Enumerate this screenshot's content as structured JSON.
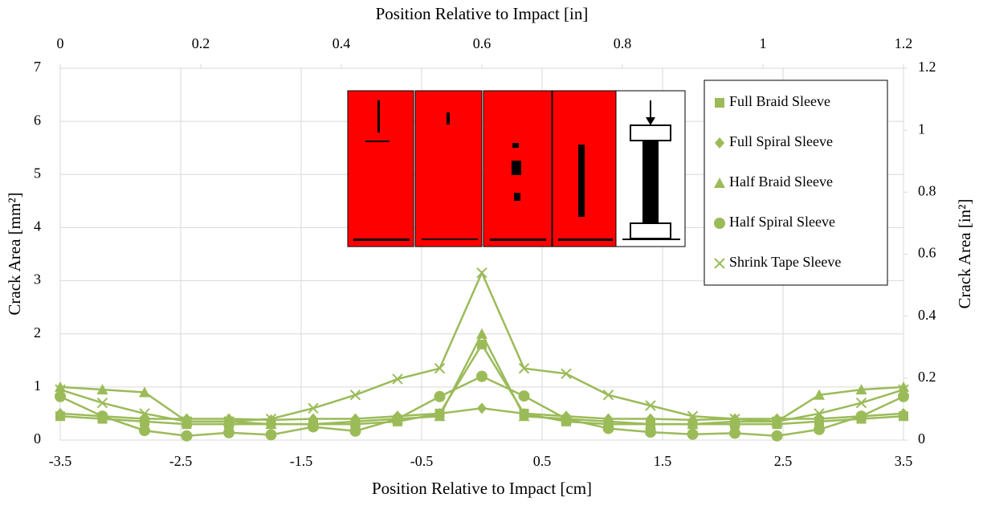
{
  "chart_data": {
    "type": "line",
    "x_label": "Position Relative to Impact [cm]",
    "x2_label": "Position Relative to Impact [in]",
    "y_label": "Crack Area [mm²]",
    "y2_label": "Crack Area [in²]",
    "x": [
      -3.5,
      -3.15,
      -2.8,
      -2.45,
      -2.1,
      -1.75,
      -1.4,
      -1.05,
      -0.7,
      -0.35,
      0,
      0.35,
      0.7,
      1.05,
      1.4,
      1.75,
      2.1,
      2.45,
      2.8,
      3.15,
      3.5
    ],
    "xlim": [
      -3.5,
      3.5
    ],
    "xticks": [
      -3.5,
      -2.5,
      -1.5,
      -0.5,
      0.5,
      1.5,
      2.5,
      3.5
    ],
    "x2lim": [
      0,
      1.2
    ],
    "x2ticks": [
      0,
      0.2,
      0.4,
      0.6,
      0.8,
      1,
      1.2
    ],
    "ylim": [
      0,
      7
    ],
    "yticks": [
      0,
      1,
      2,
      3,
      4,
      5,
      6,
      7
    ],
    "y2lim": [
      0,
      1.2
    ],
    "y2ticks": [
      0,
      0.2,
      0.4,
      0.6,
      0.8,
      1,
      1.2
    ],
    "grid": true,
    "legend": "upper right",
    "series": [
      {
        "name": "Full Braid Sleeve",
        "color": "#9bbb59",
        "marker": "square",
        "values": [
          0.45,
          0.4,
          0.35,
          0.3,
          0.3,
          0.3,
          0.3,
          0.3,
          0.35,
          0.5,
          1.8,
          0.5,
          0.35,
          0.3,
          0.3,
          0.3,
          0.3,
          0.3,
          0.35,
          0.4,
          0.45
        ]
      },
      {
        "name": "Full Spiral Sleeve",
        "color": "#9bbb59",
        "marker": "diamond",
        "values": [
          0.5,
          0.45,
          0.4,
          0.4,
          0.4,
          0.38,
          0.4,
          0.4,
          0.45,
          0.5,
          0.6,
          0.5,
          0.45,
          0.4,
          0.4,
          0.38,
          0.4,
          0.4,
          0.4,
          0.45,
          0.5
        ]
      },
      {
        "name": "Half Braid Sleeve",
        "color": "#9bbb59",
        "marker": "triangle",
        "values": [
          1.0,
          0.95,
          0.9,
          0.35,
          0.35,
          0.3,
          0.3,
          0.35,
          0.4,
          0.45,
          2.0,
          0.45,
          0.4,
          0.35,
          0.3,
          0.3,
          0.35,
          0.35,
          0.85,
          0.95,
          1.0
        ]
      },
      {
        "name": "Half Spiral Sleeve",
        "color": "#9bbb59",
        "marker": "circle",
        "values": [
          0.82,
          0.45,
          0.18,
          0.08,
          0.14,
          0.1,
          0.25,
          0.17,
          0.4,
          0.82,
          1.2,
          0.83,
          0.4,
          0.22,
          0.15,
          0.11,
          0.13,
          0.08,
          0.2,
          0.45,
          0.82
        ]
      },
      {
        "name": "Shrink Tape Sleeve",
        "color": "#9bbb59",
        "marker": "x",
        "values": [
          0.95,
          0.7,
          0.5,
          0.35,
          0.35,
          0.4,
          0.6,
          0.85,
          1.15,
          1.35,
          3.15,
          1.35,
          1.25,
          0.85,
          0.65,
          0.45,
          0.4,
          0.35,
          0.5,
          0.7,
          0.95
        ]
      }
    ]
  }
}
